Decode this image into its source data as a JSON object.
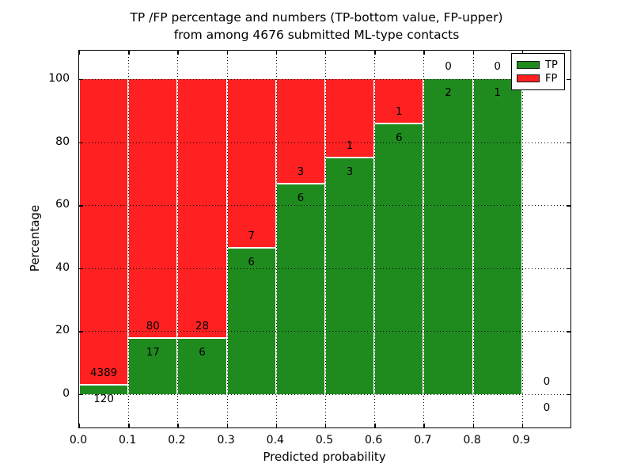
{
  "title": {
    "line1": "TP /FP percentage and numbers (TP-bottom value, FP-upper)",
    "line2": "from among 4676 submitted ML-type contacts"
  },
  "axes": {
    "xlabel": "Predicted probability",
    "ylabel": "Percentage",
    "x_tick_labels": [
      "0.0",
      "0.1",
      "0.2",
      "0.3",
      "0.4",
      "0.5",
      "0.6",
      "0.7",
      "0.8",
      "0.9"
    ],
    "y_tick_labels": [
      "0",
      "20",
      "40",
      "60",
      "80",
      "100"
    ],
    "y_tick_values": [
      0,
      20,
      40,
      60,
      80,
      100
    ]
  },
  "legend": {
    "position": "upper-right",
    "entries": [
      {
        "label": "TP",
        "color": "#1f8b1f"
      },
      {
        "label": "FP",
        "color": "#ff2121"
      }
    ]
  },
  "chart_data": {
    "type": "bar",
    "stacked": true,
    "orientation": "vertical",
    "title": "TP /FP percentage and numbers (TP-bottom value, FP-upper) from among 4676 submitted ML-type contacts",
    "xlabel": "Predicted probability",
    "ylabel": "Percentage",
    "total_contacts": 4676,
    "bin_width": 0.1,
    "categories": [
      "0.0-0.1",
      "0.1-0.2",
      "0.2-0.3",
      "0.3-0.4",
      "0.4-0.5",
      "0.5-0.6",
      "0.6-0.7",
      "0.7-0.8",
      "0.8-0.9",
      "0.9-1.0"
    ],
    "bin_centers": [
      0.05,
      0.15,
      0.25,
      0.35,
      0.45,
      0.55,
      0.65,
      0.75,
      0.85,
      0.95
    ],
    "series": [
      {
        "name": "TP",
        "color": "#1f8b1f",
        "counts": [
          120,
          17,
          6,
          6,
          6,
          3,
          6,
          2,
          1,
          0
        ],
        "percent": [
          2.66,
          17.53,
          17.65,
          46.15,
          66.67,
          75.0,
          85.71,
          100.0,
          100.0,
          0.0
        ]
      },
      {
        "name": "FP",
        "color": "#ff2121",
        "counts": [
          4389,
          80,
          28,
          7,
          3,
          1,
          1,
          0,
          0,
          0
        ],
        "percent": [
          97.34,
          82.47,
          82.35,
          53.85,
          33.33,
          25.0,
          14.29,
          0.0,
          0.0,
          0.0
        ]
      }
    ],
    "annotation_rule": "FP count printed above the TP/FP stack boundary, TP count printed below it, at each bin center",
    "xlim": [
      0.0,
      1.0
    ],
    "ylim": [
      -10.8,
      109.2
    ],
    "grid": {
      "visible": true,
      "style": "dotted",
      "color": "#000000",
      "x_step": 0.1,
      "y_step": 20
    },
    "legend_position": "upper right"
  }
}
